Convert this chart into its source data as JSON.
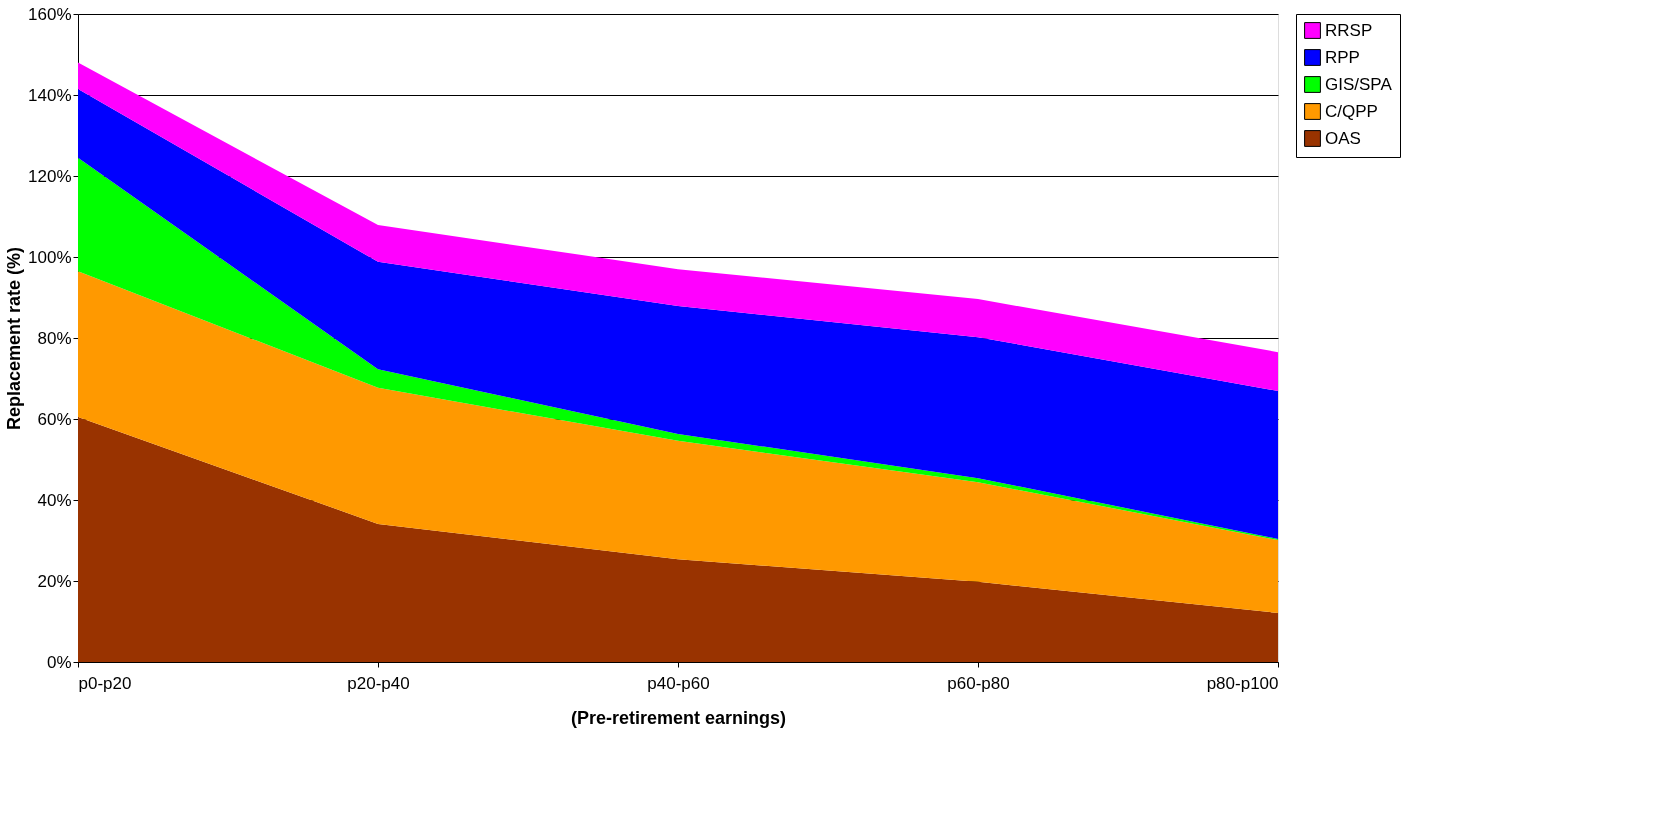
{
  "chart_data": {
    "type": "area",
    "stacked": true,
    "xlabel": "(Pre-retirement earnings)",
    "ylabel": "Replacement rate (%)",
    "categories": [
      "p0-p20",
      "p20-p40",
      "p40-p60",
      "p60-p80",
      "p80-p100"
    ],
    "series": [
      {
        "name": "OAS",
        "color": "#993300",
        "values": [
          60.5,
          34.1,
          25.4,
          19.8,
          12.1
        ]
      },
      {
        "name": "C/QPP",
        "color": "#ff9900",
        "values": [
          36.0,
          33.6,
          29.2,
          24.6,
          18.0
        ]
      },
      {
        "name": "GIS/SPA",
        "color": "#00ff00",
        "values": [
          28.0,
          4.6,
          1.7,
          1.0,
          0.3
        ]
      },
      {
        "name": "RPP",
        "color": "#0000ff",
        "values": [
          17.0,
          26.5,
          31.6,
          34.8,
          36.5
        ]
      },
      {
        "name": "RRSP",
        "color": "#ff00ff",
        "values": [
          6.5,
          9.1,
          9.1,
          9.4,
          9.6
        ]
      }
    ],
    "ylim": [
      0,
      160
    ],
    "yticks": [
      {
        "value": 0,
        "label": "0%"
      },
      {
        "value": 20,
        "label": "20%"
      },
      {
        "value": 40,
        "label": "40%"
      },
      {
        "value": 60,
        "label": "60%"
      },
      {
        "value": 80,
        "label": "80%"
      },
      {
        "value": 100,
        "label": "100%"
      },
      {
        "value": 120,
        "label": "120%"
      },
      {
        "value": 140,
        "label": "140%"
      },
      {
        "value": 160,
        "label": "160%"
      }
    ],
    "grid": "y",
    "legend": "right"
  }
}
